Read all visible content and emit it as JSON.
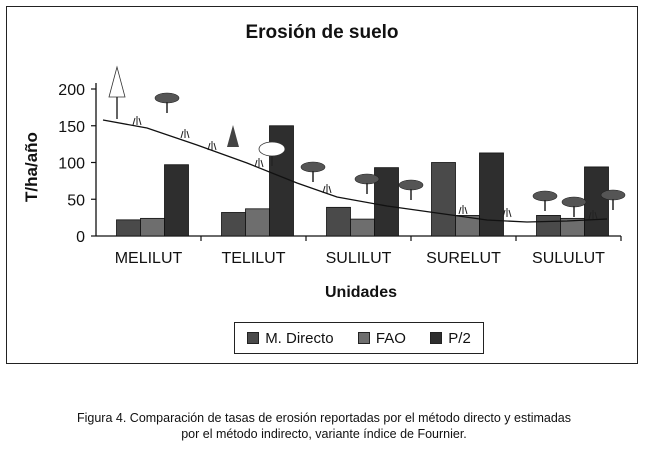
{
  "chart_data": {
    "type": "bar",
    "title": "Erosión de suelo",
    "xlabel": "Unidades",
    "ylabel": "T/ha/año",
    "categories": [
      "MELILUT",
      "TELILUT",
      "SULILUT",
      "SURELUT",
      "SULULUT"
    ],
    "yticks": [
      0,
      50,
      100,
      150,
      200
    ],
    "ylim": [
      0,
      200
    ],
    "grid": false,
    "legend_position": "bottom",
    "series": [
      {
        "name": "M. Directo",
        "values": [
          22,
          32,
          39,
          100,
          28
        ],
        "color": "#4a4a4a"
      },
      {
        "name": "FAO",
        "values": [
          24,
          37,
          23,
          28,
          24
        ],
        "color": "#6e6e6e"
      },
      {
        "name": "P/2",
        "values": [
          97,
          150,
          93,
          113,
          94
        ],
        "color": "#2e2e2e"
      }
    ]
  },
  "caption": {
    "line1": "Figura 4.  Comparación de tasas de erosión reportadas por el método directo y estimadas",
    "line2": "por el método indirecto, variante índice de Fournier."
  },
  "legend": {
    "items": [
      "M. Directo",
      "FAO",
      "P/2"
    ]
  }
}
